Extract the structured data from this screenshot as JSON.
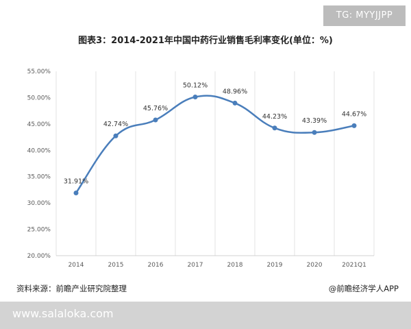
{
  "badge": {
    "text": "TG: MYYJJPP"
  },
  "footer": {
    "source": "资料来源：前瞻产业研究院整理",
    "credit": "@前瞻经济学人APP",
    "site_url": "www.salaloka.com"
  },
  "chart_data": {
    "type": "line",
    "title": "图表3：2014-2021年中国中药行业销售毛利率变化(单位：%)",
    "xlabel": "",
    "ylabel": "",
    "categories": [
      "2014",
      "2015",
      "2016",
      "2017",
      "2018",
      "2019",
      "2020",
      "2021Q1"
    ],
    "series": [
      {
        "values": [
          31.91,
          42.74,
          45.76,
          50.12,
          48.96,
          44.23,
          43.39,
          44.67
        ],
        "labels": [
          "31.91%",
          "42.74%",
          "45.76%",
          "50.12%",
          "48.96%",
          "44.23%",
          "43.39%",
          "44.67%"
        ],
        "color": "#4a7ebb",
        "smooth": true
      }
    ],
    "ylim": [
      20,
      55
    ],
    "yticks": [
      "20.00%",
      "25.00%",
      "30.00%",
      "35.00%",
      "40.00%",
      "45.00%",
      "50.00%",
      "55.00%"
    ],
    "grid": "vertical",
    "legend": "none"
  }
}
